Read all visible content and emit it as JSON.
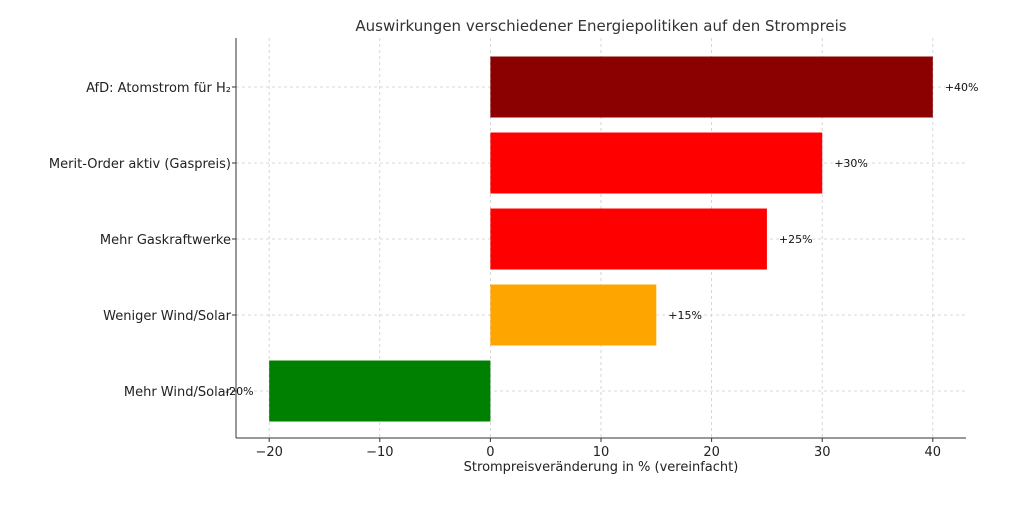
{
  "chart_data": {
    "type": "bar",
    "orientation": "horizontal",
    "title": "Auswirkungen verschiedener Energiepolitiken auf den Strompreis",
    "xlabel": "Strompreisveränderung in % (vereinfacht)",
    "ylabel": "",
    "xlim": [
      -23,
      43
    ],
    "xticks": [
      -20,
      -10,
      0,
      10,
      20,
      30,
      40
    ],
    "xtick_labels": [
      "−20",
      "−10",
      "0",
      "10",
      "20",
      "30",
      "40"
    ],
    "grid": true,
    "categories": [
      "AfD: Atomstrom für H₂",
      "Merit-Order aktiv (Gaspreis)",
      "Mehr Gaskraftwerke",
      "Weniger Wind/Solar",
      "Mehr Wind/Solar"
    ],
    "values": [
      40,
      30,
      25,
      15,
      -20
    ],
    "data_labels": [
      "+40%",
      "+30%",
      "+25%",
      "+15%",
      "-20%"
    ],
    "colors": [
      "#8b0000",
      "#ff0000",
      "#ff0000",
      "#ffa500",
      "#008000"
    ]
  }
}
